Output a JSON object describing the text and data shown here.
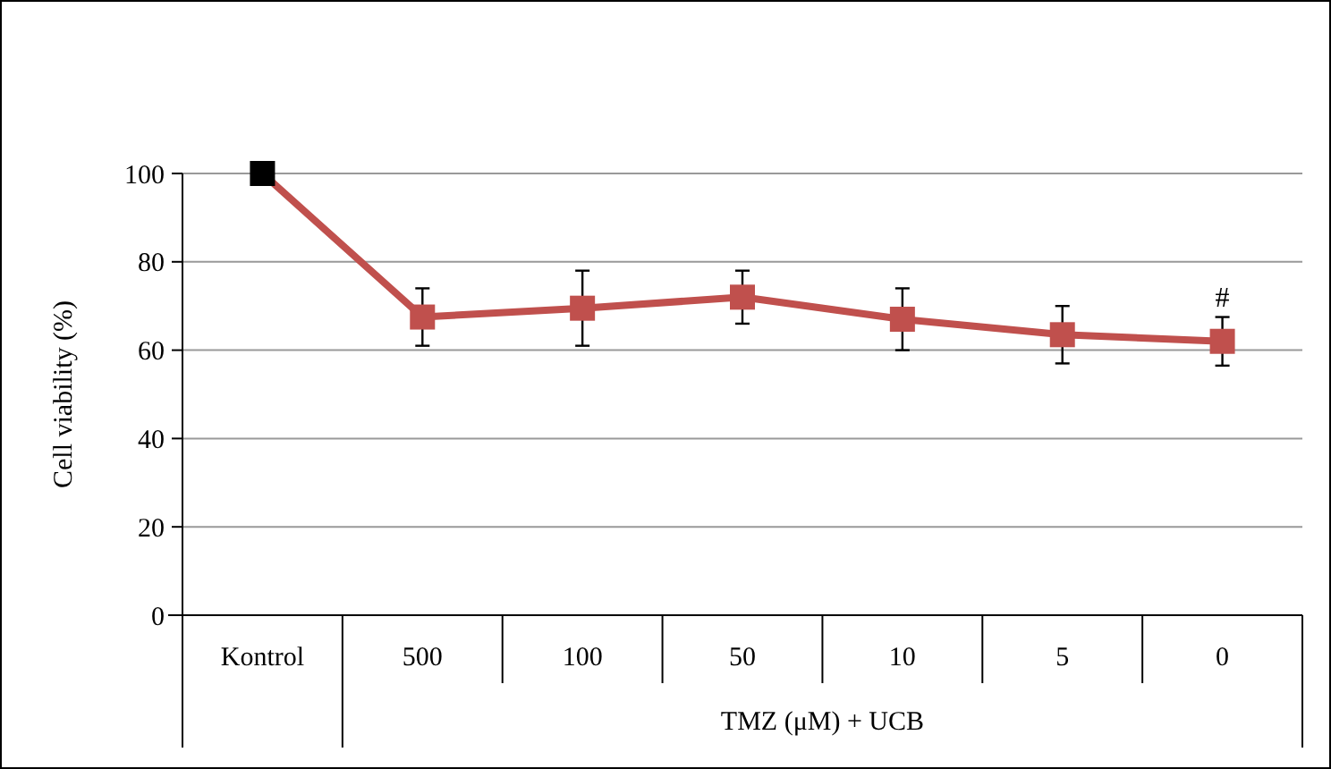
{
  "chart_data": {
    "type": "line",
    "ylabel": "Cell viability (%)",
    "xlabel": "TMZ (μM) + UCB",
    "categories": [
      "Kontrol",
      "500",
      "100",
      "50",
      "10",
      "5",
      "0"
    ],
    "series": [
      {
        "color": "#c0504d",
        "colors": [
          "#000000",
          "#c0504d",
          "#c0504d",
          "#c0504d",
          "#c0504d",
          "#c0504d",
          "#c0504d"
        ],
        "values": [
          100,
          67.5,
          69.5,
          72,
          67,
          63.5,
          62
        ],
        "errors": [
          null,
          6.5,
          8.5,
          6,
          7,
          6.5,
          5.5
        ]
      }
    ],
    "ylim": [
      0,
      100
    ],
    "yticks": [
      0,
      20,
      40,
      60,
      80,
      100
    ],
    "grid": "y",
    "marker": "square",
    "line_style": "solid",
    "annotations": [
      {
        "text": "#",
        "x": "0",
        "y": 67.5
      }
    ]
  }
}
